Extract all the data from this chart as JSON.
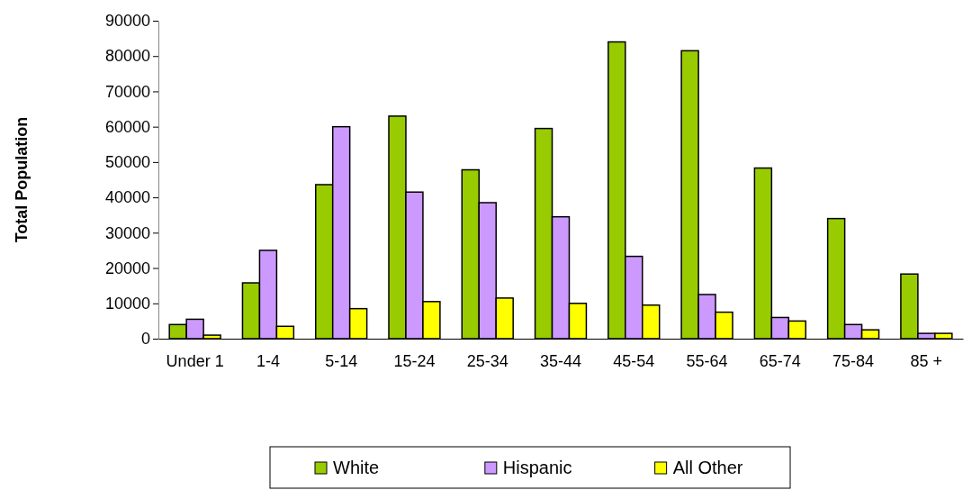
{
  "chart_data": {
    "type": "bar",
    "ylabel": "Total Population",
    "categories": [
      "Under 1",
      "1-4",
      "5-14",
      "15-24",
      "25-34",
      "35-44",
      "45-54",
      "55-64",
      "65-74",
      "75-84",
      "85 +"
    ],
    "series": [
      {
        "name": "White",
        "color": "#99cc00",
        "values": [
          4000,
          15800,
          43600,
          63000,
          47800,
          59500,
          84000,
          81500,
          48300,
          34000,
          18300
        ]
      },
      {
        "name": "Hispanic",
        "color": "#cc99ff",
        "values": [
          5500,
          25000,
          60000,
          41500,
          38500,
          34500,
          23300,
          12500,
          6000,
          4000,
          1500
        ]
      },
      {
        "name": "All Other",
        "color": "#ffff00",
        "values": [
          1000,
          3500,
          8500,
          10500,
          11500,
          10000,
          9500,
          7500,
          5000,
          2500,
          1500
        ]
      }
    ],
    "ylim": [
      0,
      90000
    ],
    "yticks": [
      0,
      10000,
      20000,
      30000,
      40000,
      50000,
      60000,
      70000,
      80000,
      90000
    ],
    "legend": "bottom"
  }
}
